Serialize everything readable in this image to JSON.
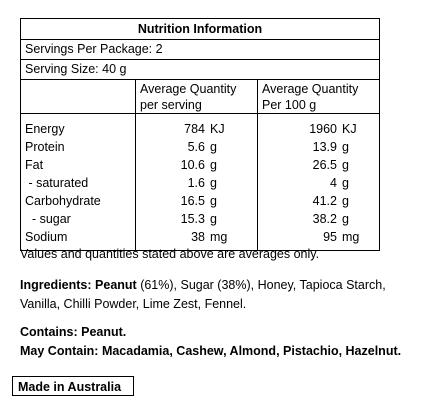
{
  "panel": {
    "title": "Nutrition Information",
    "servings_per_package": "Servings Per Package: 2",
    "serving_size": "Serving Size: 40 g",
    "col_per_serving_line1": "Average Quantity",
    "col_per_serving_line2": "per serving",
    "col_per_100g_line1": "Average Quantity",
    "col_per_100g_line2": "Per 100 g",
    "rows": [
      {
        "label": "Energy",
        "serving_num": "784",
        "serving_unit": "KJ",
        "per100_num": "1960",
        "per100_unit": "KJ"
      },
      {
        "label": "Protein",
        "serving_num": "5.6",
        "serving_unit": "g",
        "per100_num": "13.9",
        "per100_unit": "g"
      },
      {
        "label": "Fat",
        "serving_num": "10.6",
        "serving_unit": "g",
        "per100_num": "26.5",
        "per100_unit": "g"
      },
      {
        "label": " - saturated",
        "serving_num": "1.6",
        "serving_unit": "g",
        "per100_num": "4",
        "per100_unit": "g"
      },
      {
        "label": "Carbohydrate",
        "serving_num": "16.5",
        "serving_unit": "g",
        "per100_num": "41.2",
        "per100_unit": "g"
      },
      {
        "label": "  - sugar",
        "serving_num": "15.3",
        "serving_unit": "g",
        "per100_num": "38.2",
        "per100_unit": "g"
      },
      {
        "label": "Sodium",
        "serving_num": "38",
        "serving_unit": "mg",
        "per100_num": "95",
        "per100_unit": "mg"
      }
    ]
  },
  "footnote": "Values and quantities stated above are averages only.",
  "ingredients": {
    "heading": "Ingredients:",
    "peanut": "Peanut",
    "rest": " (61%), Sugar (38%), Honey, Tapioca Starch, Vanilla, Chilli Powder, Lime Zest, Fennel."
  },
  "allergens": {
    "contains": "Contains: Peanut.",
    "may_contain": "May Contain: Macadamia, Cashew, Almond, Pistachio, Hazelnut."
  },
  "origin": "Made in Australia"
}
